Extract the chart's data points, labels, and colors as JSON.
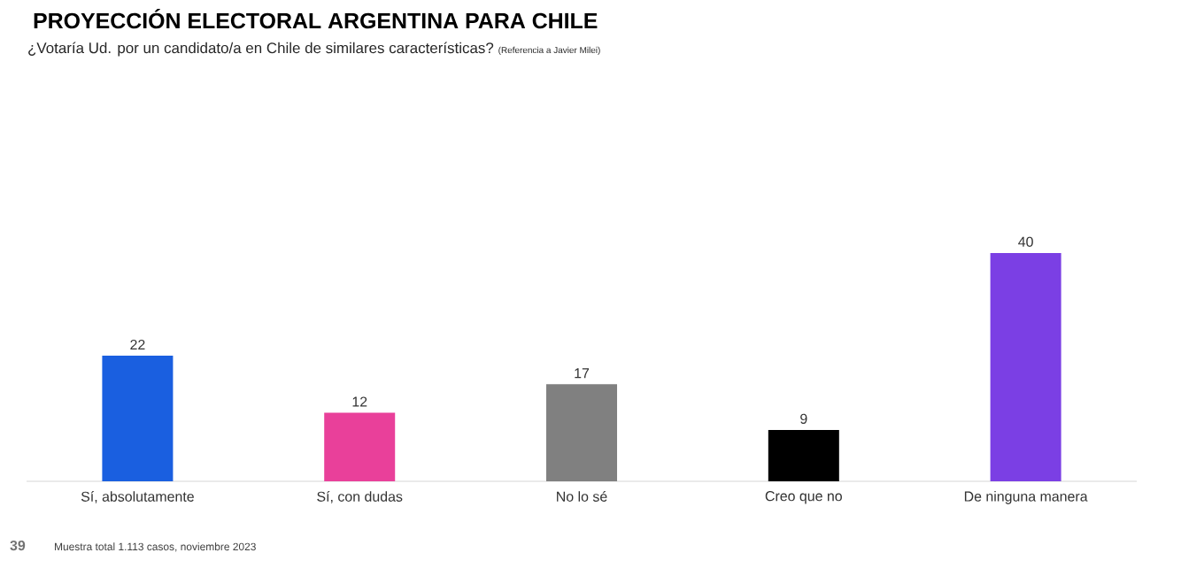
{
  "chart_data": {
    "type": "bar",
    "title": "PROYECCIÓN ELECTORAL ARGENTINA PARA CHILE",
    "subtitle": "¿Votaría Ud. por un candidato/a en Chile de similares características?",
    "annotations": [
      "(Referencia a Javier Milei)",
      "39",
      "Muestra total 1.113 casos, noviembre 2023"
    ],
    "categories": [
      "Sí, absolutamente",
      "Sí, con dudas",
      "No lo sé",
      "Creo que no",
      "De ninguna manera"
    ],
    "values": [
      22,
      12,
      17,
      9,
      40
    ],
    "colors": [
      "#1a5fe0",
      "#e9409a",
      "#808080",
      "#000000",
      "#7b3fe4"
    ],
    "ylim": [
      0,
      40
    ],
    "data_labels": true
  }
}
